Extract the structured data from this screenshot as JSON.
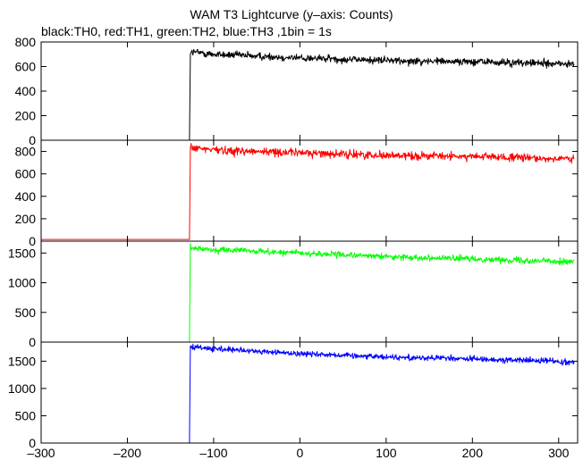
{
  "chart_data": {
    "type": "line",
    "title": "WAM T3 Lightcurve (y–axis: Counts)",
    "subtitle": "black:TH0, red:TH1, green:TH2, blue:TH3 ,1bin = 1s",
    "xlim": [
      -300,
      322
    ],
    "x_ticks": [
      -300,
      -200,
      -100,
      0,
      100,
      200,
      300
    ],
    "x_tick_labels": [
      "–300",
      "–200",
      "–100",
      "0",
      "100",
      "200",
      "300"
    ],
    "trigger_time": -127,
    "bin_seconds": 1,
    "grid": false,
    "panels": [
      {
        "name": "TH0",
        "color": "#000000",
        "ylim": [
          0,
          800
        ],
        "y_ticks": [
          0,
          200,
          400,
          600,
          800
        ],
        "y_tick_labels": [
          "0",
          "200",
          "400",
          "600",
          "800"
        ],
        "pre_level": 0,
        "x": [
          -127,
          -100,
          -50,
          0,
          50,
          100,
          150,
          200,
          250,
          300,
          318
        ],
        "y": [
          720,
          700,
          685,
          670,
          660,
          650,
          645,
          640,
          630,
          625,
          620
        ],
        "noise": 28
      },
      {
        "name": "TH1",
        "color": "#ff0000",
        "ylim": [
          0,
          900
        ],
        "y_ticks": [
          0,
          200,
          400,
          600,
          800
        ],
        "y_tick_labels": [
          "0",
          "200",
          "400",
          "600",
          "800"
        ],
        "pre_level": 15,
        "x": [
          -127,
          -100,
          -50,
          0,
          50,
          100,
          150,
          200,
          250,
          300,
          318
        ],
        "y": [
          830,
          815,
          800,
          790,
          775,
          765,
          760,
          755,
          745,
          735,
          730
        ],
        "noise": 32
      },
      {
        "name": "TH2",
        "color": "#00ff00",
        "ylim": [
          0,
          1700
        ],
        "y_ticks": [
          0,
          500,
          1000,
          1500
        ],
        "y_tick_labels": [
          "0",
          "500",
          "1000",
          "1500"
        ],
        "pre_level": 0,
        "x": [
          -127,
          -100,
          -50,
          0,
          50,
          100,
          150,
          200,
          250,
          300,
          318
        ],
        "y": [
          1580,
          1560,
          1530,
          1500,
          1470,
          1440,
          1420,
          1400,
          1380,
          1360,
          1350
        ],
        "noise": 45
      },
      {
        "name": "TH3",
        "color": "#0000ff",
        "ylim": [
          0,
          1850
        ],
        "y_ticks": [
          0,
          500,
          1000,
          1500
        ],
        "y_tick_labels": [
          "0",
          "500",
          "1000",
          "1500"
        ],
        "pre_level": 0,
        "x": [
          -127,
          -100,
          -50,
          0,
          50,
          100,
          150,
          200,
          250,
          300,
          318
        ],
        "y": [
          1760,
          1720,
          1680,
          1640,
          1610,
          1580,
          1560,
          1540,
          1520,
          1500,
          1480
        ],
        "noise": 48
      }
    ]
  }
}
